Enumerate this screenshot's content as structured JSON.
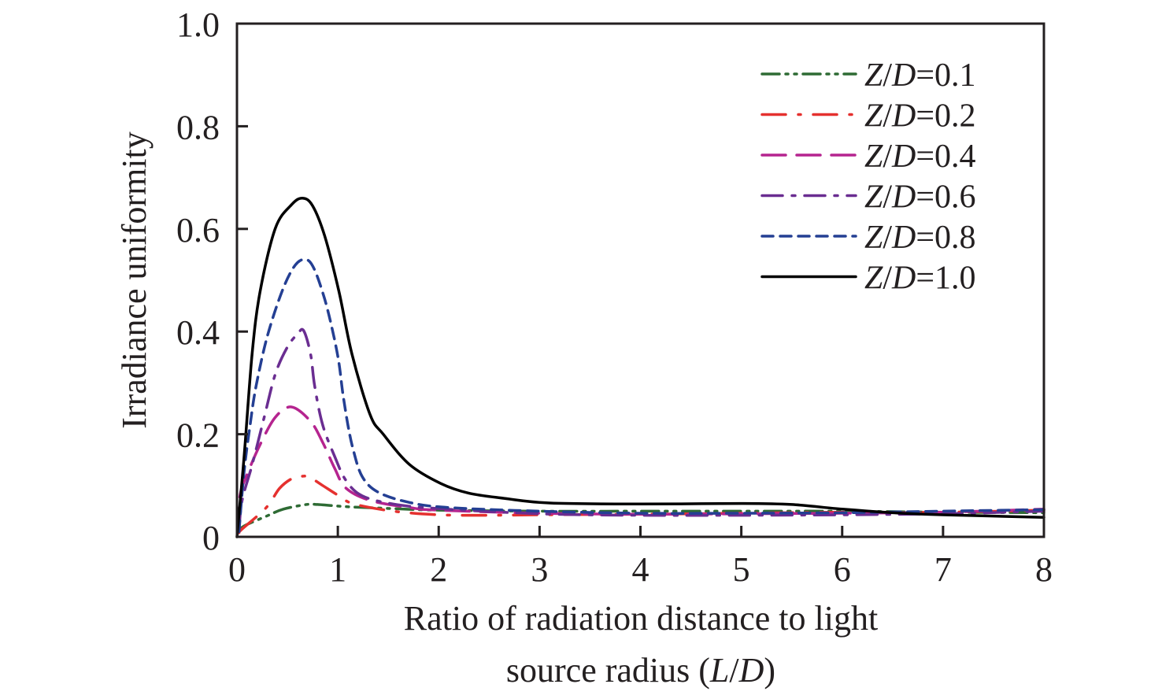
{
  "chart_data": {
    "type": "line",
    "title": "",
    "xlabel_lines": [
      "Ratio of radiation distance to light",
      "source radius (L/D)"
    ],
    "ylabel": "Irradiance uniformity",
    "xlim": [
      0,
      8
    ],
    "ylim": [
      0,
      1.0
    ],
    "xticks": [
      0,
      1,
      2,
      3,
      4,
      5,
      6,
      7,
      8
    ],
    "xtick_labels": [
      "0",
      "1",
      "2",
      "3",
      "4",
      "5",
      "6",
      "7",
      "8"
    ],
    "yticks": [
      0,
      0.2,
      0.4,
      0.6,
      0.8,
      1.0
    ],
    "ytick_labels": [
      "0",
      "0.2",
      "0.4",
      "0.6",
      "0.8",
      "1.0"
    ],
    "grid": false,
    "legend_position": "top-right",
    "series": [
      {
        "name": "Z/D=0.1",
        "legend_prefix": "Z/D=",
        "legend_value": "0.1",
        "color": "#2e6b34",
        "dash": "dash-dot-dot",
        "x": [
          0.02,
          0.07,
          0.3,
          0.46,
          0.69,
          0.8,
          1.0,
          1.16,
          1.55,
          2.0,
          3.0,
          4.0,
          5.0,
          6.0,
          7.0,
          8.0
        ],
        "y": [
          0.01,
          0.021,
          0.041,
          0.054,
          0.063,
          0.063,
          0.06,
          0.058,
          0.055,
          0.052,
          0.05,
          0.05,
          0.05,
          0.05,
          0.048,
          0.047
        ]
      },
      {
        "name": "Z/D=0.2",
        "legend_prefix": "Z/D=",
        "legend_value": "0.2",
        "color": "#e5312f",
        "dash": "dash-dot",
        "x": [
          0.02,
          0.05,
          0.29,
          0.42,
          0.54,
          0.64,
          0.72,
          0.85,
          1.01,
          1.16,
          1.55,
          2.0,
          2.5,
          3.0,
          4.0,
          5.0,
          6.0,
          7.0,
          8.0
        ],
        "y": [
          0.008,
          0.015,
          0.057,
          0.094,
          0.113,
          0.118,
          0.116,
          0.1,
          0.08,
          0.064,
          0.05,
          0.043,
          0.042,
          0.043,
          0.044,
          0.046,
          0.048,
          0.048,
          0.052
        ]
      },
      {
        "name": "Z/D=0.4",
        "legend_prefix": "Z/D=",
        "legend_value": "0.4",
        "color": "#b5248f",
        "dash": "long-dash",
        "x": [
          0.02,
          0.03,
          0.11,
          0.23,
          0.38,
          0.54,
          0.73,
          0.85,
          0.97,
          1.08,
          1.32,
          1.71,
          2.0,
          3.0,
          4.0,
          5.0,
          6.0,
          7.0,
          8.0
        ],
        "y": [
          0.01,
          0.08,
          0.126,
          0.18,
          0.233,
          0.253,
          0.225,
          0.184,
          0.133,
          0.095,
          0.071,
          0.057,
          0.052,
          0.046,
          0.044,
          0.045,
          0.046,
          0.048,
          0.054
        ]
      },
      {
        "name": "Z/D=0.6",
        "legend_prefix": "Z/D=",
        "legend_value": "0.6",
        "color": "#6a2d91",
        "dash": "dash-dot-long",
        "x": [
          0.02,
          0.05,
          0.15,
          0.27,
          0.38,
          0.5,
          0.6,
          0.66,
          0.73,
          0.77,
          0.85,
          0.97,
          1.08,
          1.24,
          1.55,
          2.0,
          3.0,
          4.0,
          5.0,
          6.0,
          7.0,
          8.0
        ],
        "y": [
          0.01,
          0.07,
          0.14,
          0.233,
          0.317,
          0.37,
          0.395,
          0.402,
          0.356,
          0.294,
          0.218,
          0.156,
          0.11,
          0.08,
          0.064,
          0.055,
          0.045,
          0.042,
          0.042,
          0.043,
          0.045,
          0.05
        ]
      },
      {
        "name": "Z/D=0.8",
        "legend_prefix": "Z/D=",
        "legend_value": "0.8",
        "color": "#243f93",
        "dash": "short-dash",
        "x": [
          0.02,
          0.07,
          0.13,
          0.19,
          0.3,
          0.45,
          0.58,
          0.69,
          0.77,
          0.87,
          0.95,
          1.01,
          1.05,
          1.1,
          1.15,
          1.24,
          1.4,
          1.71,
          2.1,
          3.0,
          4.0,
          5.0,
          6.0,
          7.0,
          8.0
        ],
        "y": [
          0.01,
          0.126,
          0.218,
          0.294,
          0.39,
          0.48,
          0.53,
          0.54,
          0.52,
          0.463,
          0.4,
          0.34,
          0.279,
          0.218,
          0.172,
          0.118,
          0.087,
          0.067,
          0.057,
          0.05,
          0.046,
          0.046,
          0.047,
          0.05,
          0.053
        ]
      },
      {
        "name": "Z/D=1.0",
        "legend_prefix": "Z/D=",
        "legend_value": "1.0",
        "color": "#000000",
        "dash": "solid",
        "x": [
          0.0,
          0.07,
          0.15,
          0.23,
          0.38,
          0.54,
          0.65,
          0.75,
          0.87,
          1.01,
          1.14,
          1.32,
          1.45,
          1.71,
          2.02,
          2.3,
          2.65,
          3.1,
          4.0,
          5.0,
          5.5,
          6.0,
          6.5,
          7.0,
          8.0
        ],
        "y": [
          0.0,
          0.155,
          0.356,
          0.479,
          0.601,
          0.647,
          0.66,
          0.645,
          0.586,
          0.479,
          0.356,
          0.238,
          0.2,
          0.141,
          0.104,
          0.085,
          0.075,
          0.066,
          0.064,
          0.065,
          0.063,
          0.054,
          0.047,
          0.043,
          0.038
        ]
      }
    ]
  }
}
